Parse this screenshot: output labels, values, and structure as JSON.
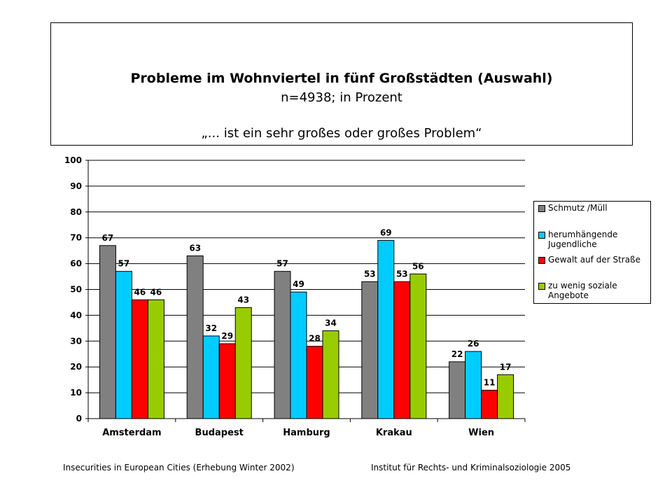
{
  "header": {
    "title": "Probleme im Wohnviertel in fünf Großstädten (Auswahl)",
    "subtitle": "n=4938;  in Prozent",
    "quote": "„... ist ein sehr großes oder großes Problem“"
  },
  "footer": {
    "left": "Insecurities in European Cities (Erhebung Winter 2002)",
    "right": "Institut für Rechts- und Kriminalsoziologie  2005"
  },
  "chart_data": {
    "type": "bar",
    "categories": [
      "Amsterdam",
      "Budapest",
      "Hamburg",
      "Krakau",
      "Wien"
    ],
    "series": [
      {
        "name": "Schmutz /Müll",
        "color": "#808080",
        "values": [
          67,
          63,
          57,
          53,
          22
        ]
      },
      {
        "name": "herumhängende Jugendliche",
        "color": "#00ccff",
        "values": [
          57,
          32,
          49,
          69,
          26
        ]
      },
      {
        "name": "Gewalt auf der Straße",
        "color": "#ff0000",
        "values": [
          46,
          29,
          28,
          53,
          11
        ]
      },
      {
        "name": "zu wenig soziale Angebote",
        "color": "#99cc00",
        "values": [
          46,
          43,
          34,
          56,
          17
        ]
      }
    ],
    "ylim": [
      0,
      100
    ],
    "yticks": [
      0,
      10,
      20,
      30,
      40,
      50,
      60,
      70,
      80,
      90,
      100
    ],
    "grid": true,
    "legend_position": "right"
  }
}
